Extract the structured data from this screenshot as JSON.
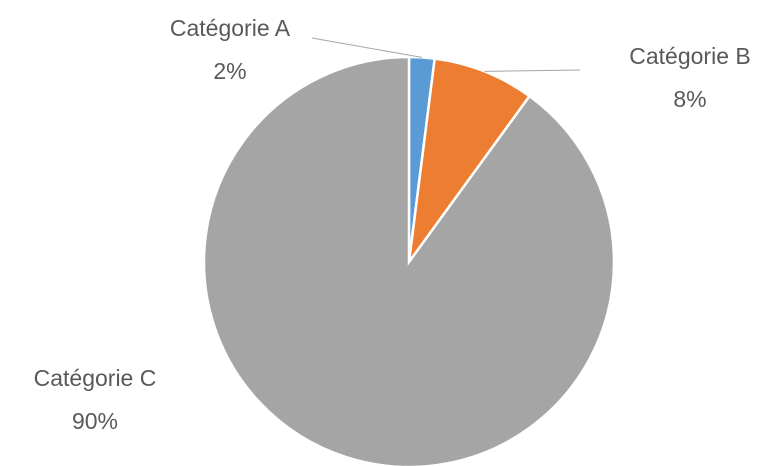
{
  "chart_data": {
    "type": "pie",
    "categories": [
      "Catégorie A",
      "Catégorie B",
      "Catégorie C"
    ],
    "values": [
      2,
      8,
      90
    ],
    "value_labels": [
      "2%",
      "8%",
      "90%"
    ],
    "colors": [
      "#5b9bd5",
      "#ed7d31",
      "#a5a5a5"
    ]
  }
}
